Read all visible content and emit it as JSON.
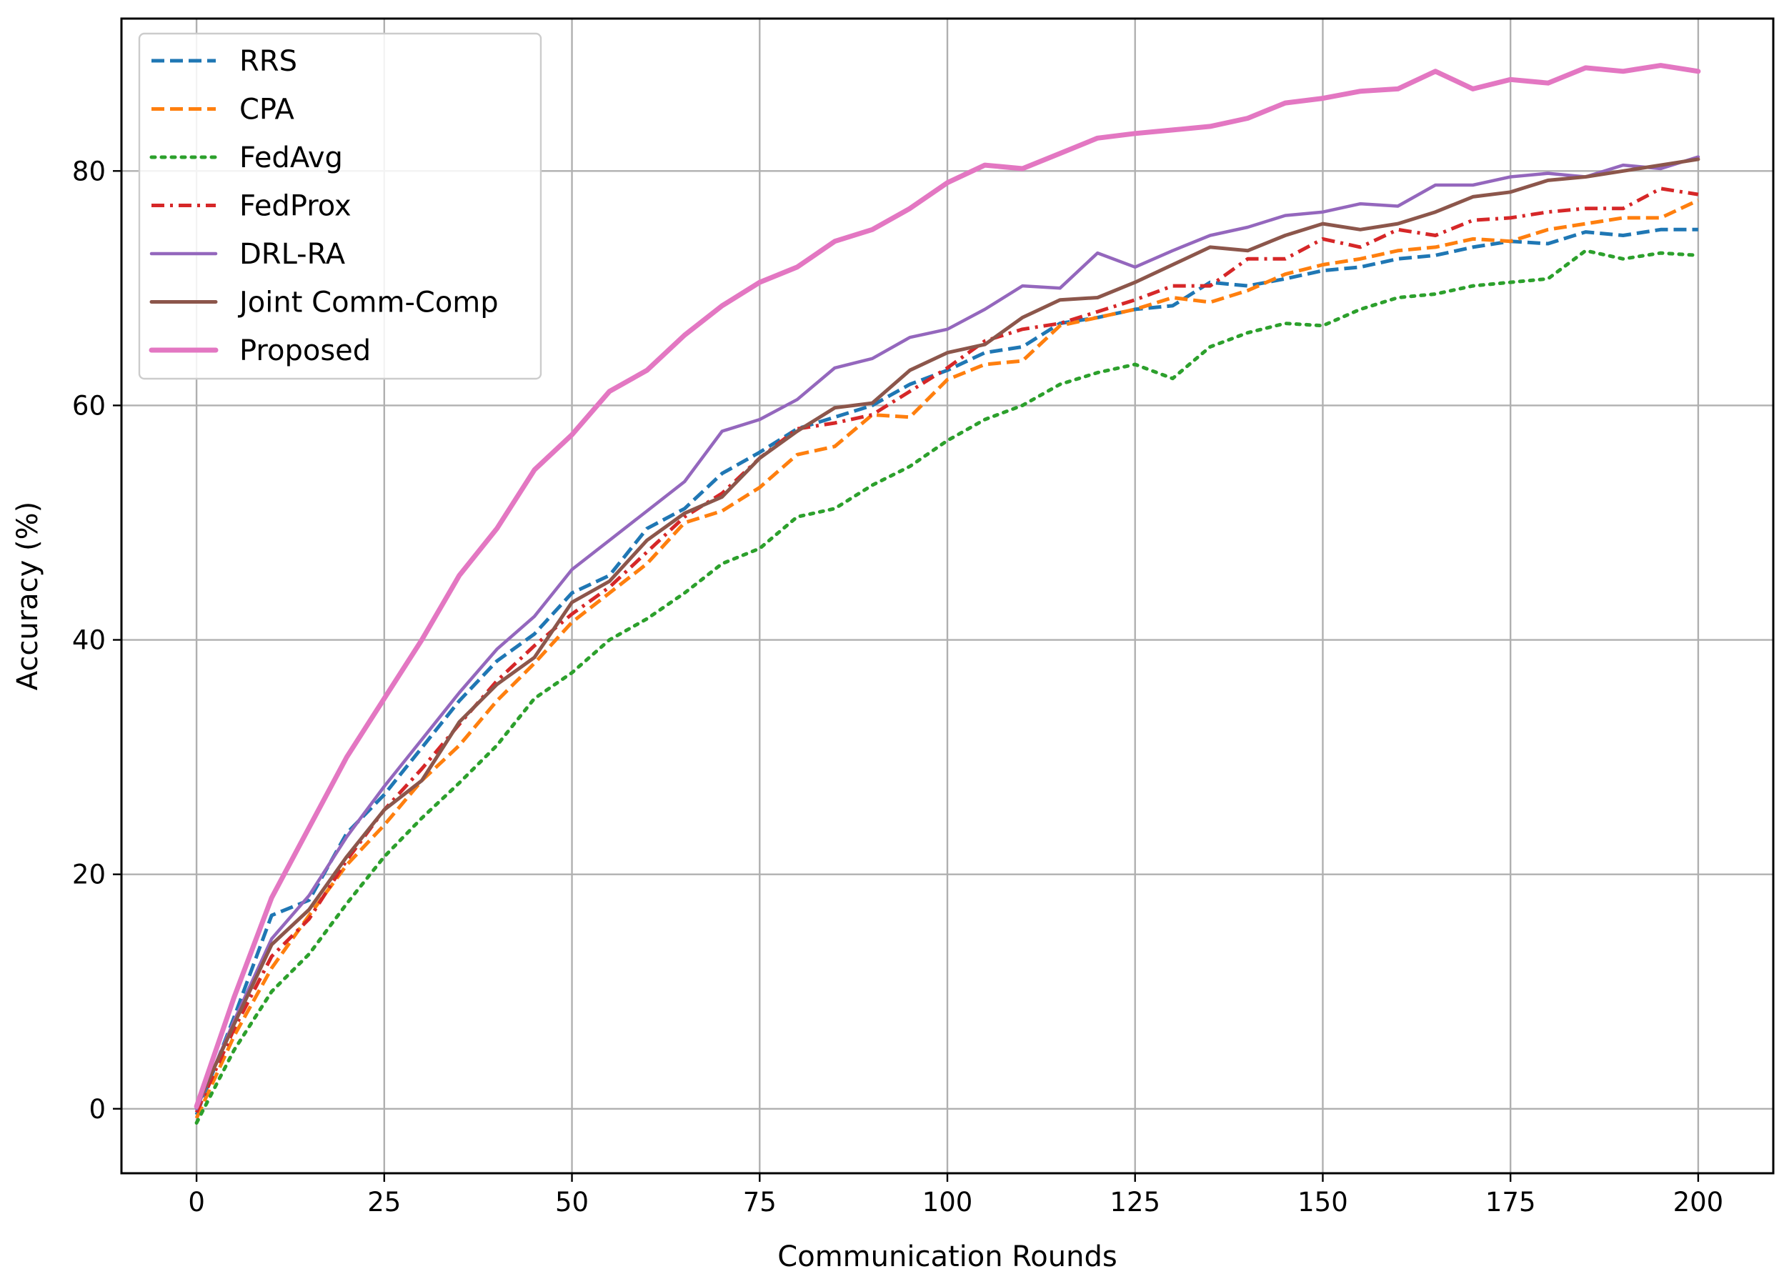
{
  "chart_data": {
    "type": "line",
    "title": "",
    "xlabel": "Communication Rounds",
    "ylabel": "Accuracy (%)",
    "xlim": [
      -10,
      210
    ],
    "ylim": [
      -5.5,
      93
    ],
    "xticks": [
      0,
      25,
      50,
      75,
      100,
      125,
      150,
      175,
      200
    ],
    "yticks": [
      0,
      20,
      40,
      60,
      80
    ],
    "grid": true,
    "legend_position": "upper-left",
    "x": [
      0,
      5,
      10,
      15,
      20,
      25,
      30,
      35,
      40,
      45,
      50,
      55,
      60,
      65,
      70,
      75,
      80,
      85,
      90,
      95,
      100,
      105,
      110,
      115,
      120,
      125,
      130,
      135,
      140,
      145,
      150,
      155,
      160,
      165,
      170,
      175,
      180,
      185,
      190,
      195,
      200
    ],
    "series": [
      {
        "name": "RRS",
        "color": "#1f77b4",
        "dash": "dashed",
        "width": 5,
        "values": [
          -0.5,
          7.8,
          16.5,
          17.8,
          23.5,
          26.8,
          30.8,
          34.8,
          38.2,
          40.5,
          44.0,
          45.5,
          49.5,
          51.2,
          54.2,
          56.0,
          58.0,
          59.0,
          60.0,
          61.8,
          63.0,
          64.5,
          65.0,
          67.0,
          67.5,
          68.2,
          68.5,
          70.5,
          70.2,
          70.8,
          71.5,
          71.8,
          72.5,
          72.8,
          73.5,
          74.0,
          73.8,
          74.8,
          74.5,
          75.0,
          75.0
        ]
      },
      {
        "name": "CPA",
        "color": "#ff7f0e",
        "dash": "dashed",
        "width": 5,
        "values": [
          -0.8,
          6.2,
          12.0,
          16.5,
          20.8,
          24.2,
          28.0,
          31.0,
          34.8,
          38.0,
          41.5,
          44.0,
          46.5,
          50.0,
          51.0,
          53.0,
          55.8,
          56.5,
          59.2,
          59.0,
          62.2,
          63.5,
          63.8,
          66.8,
          67.5,
          68.2,
          69.2,
          68.8,
          69.8,
          71.2,
          72.0,
          72.5,
          73.2,
          73.5,
          74.2,
          74.0,
          75.0,
          75.5,
          76.0,
          76.0,
          77.5
        ]
      },
      {
        "name": "FedAvg",
        "color": "#2ca02c",
        "dash": "dotted",
        "width": 5,
        "values": [
          -1.2,
          5.0,
          10.0,
          13.2,
          17.5,
          21.5,
          24.8,
          27.8,
          31.0,
          35.0,
          37.2,
          40.0,
          41.8,
          44.0,
          46.5,
          47.8,
          50.5,
          51.2,
          53.2,
          54.8,
          57.0,
          58.8,
          60.0,
          61.8,
          62.8,
          63.5,
          62.3,
          65.0,
          66.2,
          67.0,
          66.8,
          68.2,
          69.2,
          69.5,
          70.2,
          70.5,
          70.8,
          73.2,
          72.5,
          73.0,
          72.8
        ]
      },
      {
        "name": "FedProx",
        "color": "#d62728",
        "dash": "dashdot",
        "width": 5,
        "values": [
          -0.3,
          6.8,
          13.0,
          16.2,
          21.2,
          25.5,
          29.0,
          32.8,
          36.5,
          39.5,
          42.2,
          44.5,
          47.5,
          50.5,
          52.5,
          55.5,
          58.0,
          58.5,
          59.2,
          61.2,
          63.2,
          65.5,
          66.5,
          67.0,
          68.0,
          69.0,
          70.2,
          70.2,
          72.5,
          72.5,
          74.2,
          73.5,
          75.0,
          74.5,
          75.8,
          76.0,
          76.5,
          76.8,
          76.8,
          78.5,
          78.0
        ]
      },
      {
        "name": "DRL-RA",
        "color": "#9467bd",
        "dash": "solid",
        "width": 4.5,
        "values": [
          0.0,
          7.5,
          14.5,
          18.2,
          23.2,
          27.5,
          31.5,
          35.5,
          39.2,
          42.0,
          46.0,
          48.5,
          51.0,
          53.5,
          57.8,
          58.8,
          60.5,
          63.2,
          64.0,
          65.8,
          66.5,
          68.2,
          70.2,
          70.0,
          73.0,
          71.8,
          73.2,
          74.5,
          75.2,
          76.2,
          76.5,
          77.2,
          77.0,
          78.8,
          78.8,
          79.5,
          79.8,
          79.5,
          80.5,
          80.2,
          81.2
        ]
      },
      {
        "name": "Joint Comm-Comp",
        "color": "#8c564b",
        "dash": "solid",
        "width": 5,
        "values": [
          0.2,
          7.2,
          14.0,
          17.0,
          21.5,
          25.5,
          28.0,
          33.0,
          36.2,
          38.5,
          43.2,
          45.0,
          48.5,
          50.8,
          52.2,
          55.5,
          57.8,
          59.8,
          60.2,
          63.0,
          64.5,
          65.2,
          67.5,
          69.0,
          69.2,
          70.5,
          72.0,
          73.5,
          73.2,
          74.5,
          75.5,
          75.0,
          75.5,
          76.5,
          77.8,
          78.2,
          79.2,
          79.5,
          80.0,
          80.5,
          81.0
        ]
      },
      {
        "name": "Proposed",
        "color": "#e377c2",
        "dash": "solid",
        "width": 7,
        "values": [
          0.2,
          9.5,
          18.0,
          24.0,
          30.0,
          35.0,
          40.0,
          45.5,
          49.5,
          54.5,
          57.5,
          61.2,
          63.0,
          66.0,
          68.5,
          70.5,
          71.8,
          74.0,
          75.0,
          76.8,
          79.0,
          80.5,
          80.2,
          81.5,
          82.8,
          83.2,
          83.5,
          83.8,
          84.5,
          85.8,
          86.2,
          86.8,
          87.0,
          88.5,
          87.0,
          87.8,
          87.5,
          88.8,
          88.5,
          89.0,
          88.5
        ]
      }
    ]
  }
}
